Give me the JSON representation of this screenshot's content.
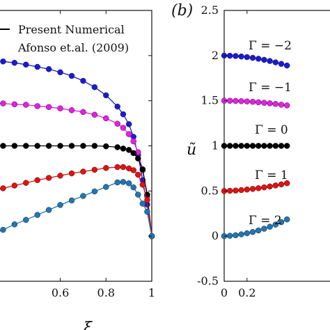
{
  "chart_data": [
    {
      "type": "line",
      "panel": "a",
      "xlim": [
        0.3,
        1.0
      ],
      "ylim": [
        -0.5,
        2.5
      ],
      "xticks": [
        "0.6",
        "0.8",
        "1"
      ],
      "xlabel_partial": "ξ",
      "legend": {
        "placement": "top-right",
        "entries": [
          {
            "label": "Present Numerical",
            "style": "line"
          },
          {
            "label": "Afonso et.al. (2009)",
            "style": "marker"
          }
        ]
      },
      "series": [
        {
          "color": "#1a1ad6",
          "x": [
            0.3,
            0.35,
            0.4,
            0.45,
            0.5,
            0.55,
            0.6,
            0.65,
            0.7,
            0.75,
            0.8,
            0.85,
            0.875,
            0.9,
            0.92,
            0.94,
            0.96,
            0.98,
            1.0
          ],
          "y": [
            1.95,
            1.935,
            1.92,
            1.9,
            1.875,
            1.85,
            1.815,
            1.775,
            1.72,
            1.65,
            1.56,
            1.435,
            1.35,
            1.24,
            1.1,
            0.9,
            0.62,
            0.35,
            0.0
          ]
        },
        {
          "color": "#e61ee6",
          "x": [
            0.3,
            0.35,
            0.4,
            0.45,
            0.5,
            0.55,
            0.6,
            0.65,
            0.7,
            0.75,
            0.8,
            0.85,
            0.875,
            0.9,
            0.92,
            0.94,
            0.96,
            0.98,
            1.0
          ],
          "y": [
            1.475,
            1.47,
            1.46,
            1.455,
            1.44,
            1.43,
            1.415,
            1.395,
            1.375,
            1.345,
            1.305,
            1.245,
            1.2,
            1.13,
            1.05,
            0.93,
            0.73,
            0.44,
            0.0
          ]
        },
        {
          "color": "#000000",
          "x": [
            0.3,
            0.35,
            0.4,
            0.45,
            0.5,
            0.55,
            0.6,
            0.65,
            0.7,
            0.75,
            0.8,
            0.85,
            0.875,
            0.9,
            0.92,
            0.94,
            0.96,
            0.98,
            1.0
          ],
          "y": [
            1.0,
            1.0,
            1.0,
            1.0,
            1.0,
            1.0,
            1.0,
            1.0,
            1.0,
            1.0,
            0.995,
            0.985,
            0.97,
            0.955,
            0.92,
            0.86,
            0.74,
            0.46,
            0.0
          ]
        },
        {
          "color": "#e61010",
          "x": [
            0.3,
            0.35,
            0.4,
            0.45,
            0.5,
            0.55,
            0.6,
            0.65,
            0.7,
            0.75,
            0.8,
            0.85,
            0.875,
            0.9,
            0.92,
            0.94,
            0.96,
            0.98,
            1.0
          ],
          "y": [
            0.5,
            0.53,
            0.56,
            0.59,
            0.62,
            0.645,
            0.67,
            0.695,
            0.715,
            0.735,
            0.755,
            0.765,
            0.765,
            0.75,
            0.73,
            0.68,
            0.57,
            0.4,
            0.0
          ]
        },
        {
          "color": "#1f77b4",
          "x": [
            0.3,
            0.35,
            0.4,
            0.45,
            0.5,
            0.55,
            0.6,
            0.65,
            0.7,
            0.75,
            0.8,
            0.85,
            0.875,
            0.9,
            0.92,
            0.94,
            0.96,
            0.98,
            1.0
          ],
          "y": [
            0.02,
            0.07,
            0.13,
            0.18,
            0.235,
            0.29,
            0.345,
            0.395,
            0.445,
            0.495,
            0.545,
            0.595,
            0.6,
            0.585,
            0.54,
            0.46,
            0.36,
            0.27,
            0.0
          ]
        }
      ]
    },
    {
      "type": "line",
      "panel": "b",
      "panel_label": "(b)",
      "xlim": [
        0,
        1.0
      ],
      "ylim": [
        -0.5,
        2.5
      ],
      "xticks": [
        "0",
        "0.2"
      ],
      "yticks": [
        "-0.5",
        "0",
        "0.5",
        "1",
        "1.5",
        "2",
        "2.5"
      ],
      "ylabel": "ũ",
      "annotations": [
        "Γ = −2",
        "Γ = −1",
        "Γ = 0",
        "Γ = 1",
        "Γ = 2"
      ],
      "series": [
        {
          "color": "#1a1ad6",
          "x": [
            0,
            0.05,
            0.1,
            0.15,
            0.2,
            0.25,
            0.3,
            0.35,
            0.4,
            0.45,
            0.5,
            0.55
          ],
          "y": [
            2.0,
            1.998,
            1.995,
            1.99,
            1.983,
            1.975,
            1.965,
            1.953,
            1.94,
            1.925,
            1.908,
            1.89
          ]
        },
        {
          "color": "#e61ee6",
          "x": [
            0,
            0.05,
            0.1,
            0.15,
            0.2,
            0.25,
            0.3,
            0.35,
            0.4,
            0.45,
            0.5,
            0.55
          ],
          "y": [
            1.5,
            1.499,
            1.497,
            1.495,
            1.492,
            1.488,
            1.483,
            1.477,
            1.471,
            1.464,
            1.456,
            1.448
          ]
        },
        {
          "color": "#000000",
          "x": [
            0,
            0.05,
            0.1,
            0.15,
            0.2,
            0.25,
            0.3,
            0.35,
            0.4,
            0.45,
            0.5,
            0.55
          ],
          "y": [
            1.0,
            1.0,
            1.0,
            1.0,
            1.0,
            1.0,
            1.0,
            1.0,
            1.0,
            1.0,
            1.0,
            1.0
          ]
        },
        {
          "color": "#e61010",
          "x": [
            0,
            0.05,
            0.1,
            0.15,
            0.2,
            0.25,
            0.3,
            0.35,
            0.4,
            0.45,
            0.5,
            0.55
          ],
          "y": [
            0.5,
            0.502,
            0.505,
            0.51,
            0.516,
            0.523,
            0.531,
            0.54,
            0.55,
            0.561,
            0.573,
            0.586
          ]
        },
        {
          "color": "#1f77b4",
          "x": [
            0,
            0.05,
            0.1,
            0.15,
            0.2,
            0.25,
            0.3,
            0.35,
            0.4,
            0.45,
            0.5,
            0.55
          ],
          "y": [
            0.0,
            0.004,
            0.01,
            0.02,
            0.032,
            0.046,
            0.063,
            0.082,
            0.104,
            0.128,
            0.155,
            0.185
          ]
        }
      ]
    }
  ]
}
